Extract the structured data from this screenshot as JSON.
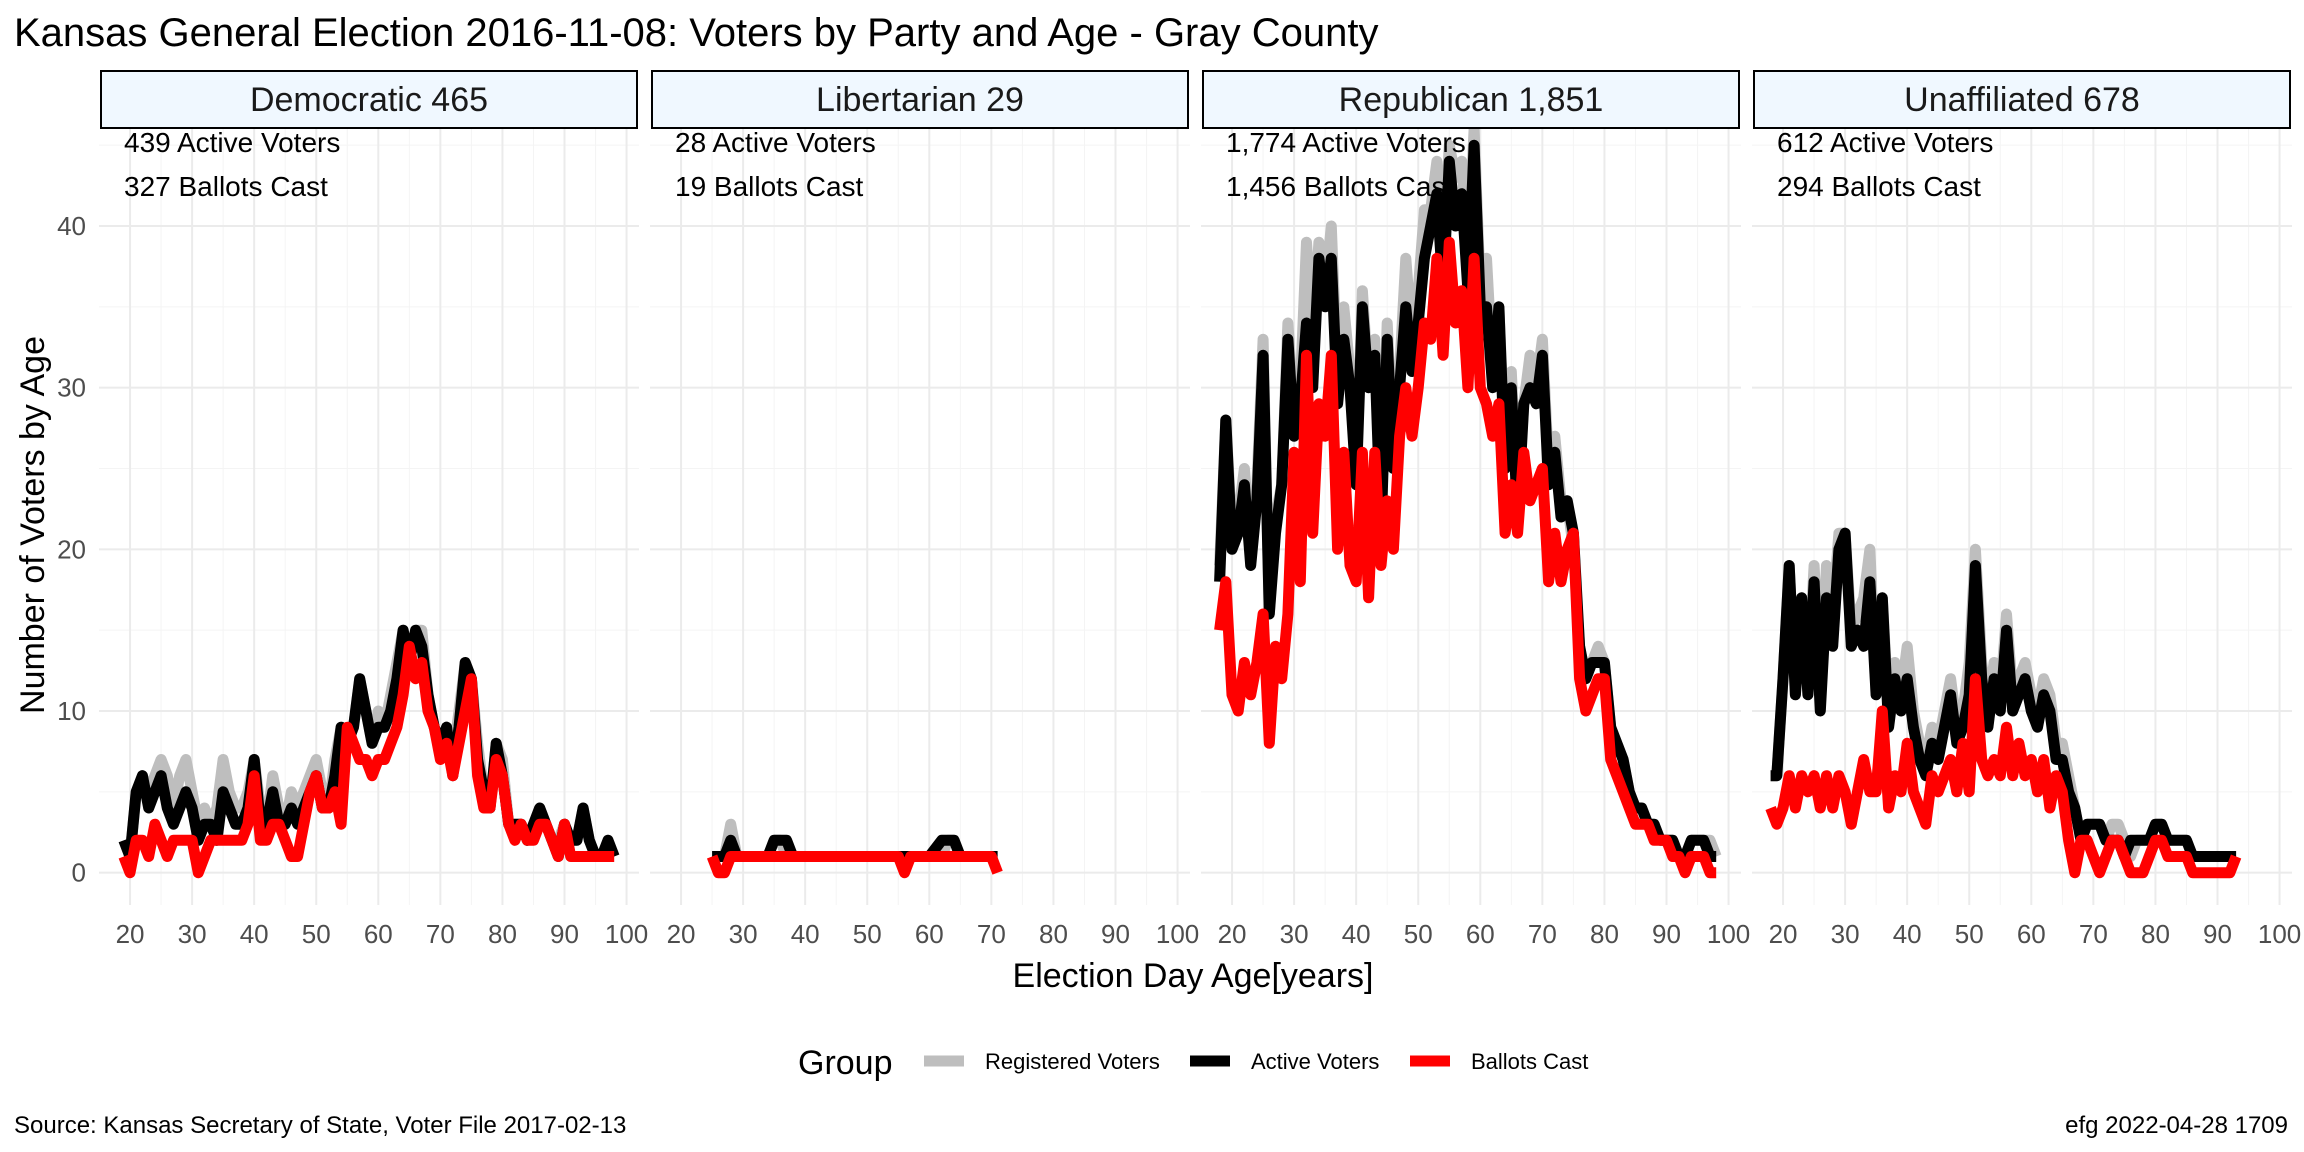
{
  "chart_data": {
    "type": "line",
    "title": "Kansas General Election 2016-11-08:  Voters by Party and Age - Gray County",
    "xlabel": "Election Day Age[years]",
    "ylabel": "Number of Voters by Age",
    "xlim": [
      15,
      102
    ],
    "ylim": [
      -2,
      46
    ],
    "x_ticks": [
      20,
      30,
      40,
      50,
      60,
      70,
      80,
      90,
      100
    ],
    "y_ticks": [
      0,
      10,
      20,
      30,
      40
    ],
    "grid": true,
    "legend": {
      "title": "Group",
      "position": "bottom",
      "entries": [
        {
          "label": "Registered Voters",
          "color": "#bebebe"
        },
        {
          "label": "Active Voters",
          "color": "#000000"
        },
        {
          "label": "Ballots Cast",
          "color": "#ff0000"
        }
      ]
    },
    "series_colors": {
      "registered": "#bebebe",
      "active": "#000000",
      "ballots": "#ff0000"
    },
    "panels": [
      {
        "strip": "Democratic 465",
        "annotation_active": "439 Active Voters",
        "annotation_ballots": "327 Ballots Cast",
        "x": [
          19,
          20,
          21,
          22,
          23,
          24,
          25,
          26,
          27,
          28,
          29,
          30,
          31,
          32,
          33,
          34,
          35,
          36,
          37,
          38,
          39,
          40,
          41,
          42,
          43,
          44,
          45,
          46,
          47,
          48,
          49,
          50,
          51,
          52,
          53,
          54,
          55,
          56,
          57,
          58,
          59,
          60,
          61,
          62,
          63,
          64,
          65,
          66,
          67,
          68,
          69,
          70,
          71,
          72,
          73,
          74,
          75,
          76,
          77,
          78,
          79,
          80,
          81,
          82,
          83,
          84,
          85,
          86,
          87,
          88,
          89,
          90,
          91,
          92,
          93,
          94,
          95,
          96,
          97,
          98
        ],
        "registered": [
          2,
          1,
          5,
          6,
          5,
          6,
          7,
          6,
          4,
          6,
          7,
          5,
          3,
          4,
          3,
          4,
          7,
          5,
          4,
          4,
          5,
          7,
          4,
          3,
          6,
          4,
          3,
          5,
          4,
          5,
          6,
          7,
          5,
          4,
          7,
          9,
          8,
          9,
          12,
          10,
          8,
          10,
          9,
          11,
          13,
          15,
          13,
          15,
          15,
          11,
          9,
          8,
          9,
          7,
          10,
          13,
          12,
          8,
          5,
          4,
          8,
          7,
          3,
          3,
          3,
          2,
          3,
          4,
          3,
          2,
          2,
          3,
          2,
          2,
          4,
          2,
          1,
          1,
          2,
          1
        ],
        "active": [
          2,
          1,
          5,
          6,
          4,
          5,
          6,
          4,
          3,
          4,
          5,
          4,
          2,
          3,
          3,
          2,
          5,
          4,
          3,
          3,
          4,
          7,
          3,
          3,
          5,
          3,
          3,
          4,
          3,
          4,
          5,
          6,
          4,
          4,
          6,
          9,
          8,
          9,
          12,
          10,
          8,
          9,
          9,
          10,
          12,
          15,
          13,
          15,
          14,
          11,
          9,
          8,
          9,
          6,
          9,
          13,
          12,
          7,
          5,
          4,
          8,
          6,
          3,
          3,
          3,
          2,
          3,
          4,
          3,
          2,
          1,
          3,
          2,
          2,
          4,
          2,
          1,
          1,
          2,
          1
        ],
        "ballots": [
          1,
          0,
          2,
          2,
          1,
          3,
          2,
          1,
          2,
          2,
          2,
          2,
          0,
          1,
          2,
          2,
          2,
          2,
          2,
          2,
          3,
          6,
          2,
          2,
          3,
          3,
          2,
          1,
          1,
          3,
          5,
          6,
          4,
          4,
          5,
          3,
          9,
          8,
          7,
          7,
          6,
          7,
          7,
          8,
          9,
          11,
          14,
          12,
          13,
          10,
          9,
          7,
          8,
          6,
          8,
          10,
          12,
          6,
          4,
          4,
          7,
          6,
          3,
          2,
          3,
          2,
          2,
          3,
          3,
          2,
          1,
          3,
          1,
          1,
          1,
          1,
          1,
          1,
          1,
          1
        ]
      },
      {
        "strip": "Libertarian 29",
        "annotation_active": "28 Active Voters",
        "annotation_ballots": "19 Ballots Cast",
        "x": [
          25,
          26,
          27,
          28,
          29,
          30,
          31,
          32,
          33,
          34,
          35,
          36,
          37,
          38,
          39,
          40,
          45,
          50,
          55,
          56,
          57,
          58,
          60,
          62,
          63,
          64,
          65,
          70,
          71
        ],
        "registered": [
          1,
          1,
          1,
          3,
          1,
          1,
          1,
          1,
          1,
          1,
          2,
          2,
          1,
          1,
          1,
          1,
          1,
          1,
          1,
          1,
          1,
          1,
          1,
          1,
          2,
          2,
          1,
          1,
          1
        ],
        "active": [
          1,
          1,
          1,
          2,
          1,
          1,
          1,
          1,
          1,
          1,
          2,
          2,
          2,
          1,
          1,
          1,
          1,
          1,
          1,
          1,
          1,
          1,
          1,
          2,
          2,
          2,
          1,
          1,
          1
        ],
        "ballots": [
          1,
          0,
          0,
          1,
          1,
          1,
          1,
          1,
          1,
          1,
          1,
          1,
          1,
          1,
          1,
          1,
          1,
          1,
          1,
          0,
          1,
          1,
          1,
          1,
          1,
          1,
          1,
          1,
          0
        ]
      },
      {
        "strip": "Republican 1,851",
        "annotation_active": "1,774 Active Voters",
        "annotation_ballots": "1,456 Ballots Cast",
        "x": [
          18,
          19,
          20,
          21,
          22,
          23,
          24,
          25,
          26,
          27,
          28,
          29,
          30,
          31,
          32,
          33,
          34,
          35,
          36,
          37,
          38,
          39,
          40,
          41,
          42,
          43,
          44,
          45,
          46,
          47,
          48,
          49,
          50,
          51,
          52,
          53,
          54,
          55,
          56,
          57,
          58,
          59,
          60,
          61,
          62,
          63,
          64,
          65,
          66,
          67,
          68,
          69,
          70,
          71,
          72,
          73,
          74,
          75,
          76,
          77,
          78,
          79,
          80,
          81,
          82,
          83,
          84,
          85,
          86,
          87,
          88,
          89,
          90,
          91,
          92,
          93,
          94,
          95,
          96,
          97,
          98
        ],
        "registered": [
          19,
          28,
          21,
          22,
          25,
          20,
          24,
          33,
          16,
          22,
          24,
          34,
          28,
          30,
          39,
          33,
          39,
          36,
          40,
          30,
          35,
          31,
          25,
          36,
          30,
          33,
          22,
          34,
          26,
          31,
          38,
          33,
          36,
          41,
          41,
          44,
          38,
          45,
          43,
          44,
          38,
          46,
          36,
          38,
          31,
          35,
          26,
          31,
          23,
          29,
          32,
          30,
          33,
          25,
          27,
          23,
          23,
          20,
          14,
          12,
          13,
          14,
          13,
          9,
          8,
          7,
          5,
          4,
          4,
          3,
          3,
          2,
          2,
          2,
          1,
          1,
          2,
          2,
          2,
          2,
          1
        ],
        "active": [
          18,
          28,
          20,
          21,
          24,
          19,
          23,
          32,
          16,
          21,
          24,
          33,
          27,
          29,
          34,
          30,
          38,
          35,
          38,
          29,
          33,
          30,
          24,
          35,
          30,
          32,
          21,
          33,
          25,
          30,
          35,
          31,
          34,
          38,
          40,
          42,
          36,
          44,
          40,
          42,
          36,
          45,
          35,
          35,
          30,
          35,
          25,
          30,
          22,
          29,
          30,
          29,
          32,
          24,
          26,
          22,
          23,
          21,
          14,
          12,
          13,
          13,
          13,
          9,
          8,
          7,
          5,
          4,
          4,
          3,
          3,
          2,
          2,
          2,
          1,
          1,
          2,
          2,
          2,
          1,
          1
        ],
        "ballots": [
          15,
          18,
          11,
          10,
          13,
          11,
          13,
          16,
          8,
          14,
          12,
          16,
          26,
          18,
          32,
          21,
          29,
          27,
          32,
          20,
          26,
          19,
          18,
          26,
          17,
          26,
          19,
          23,
          20,
          27,
          30,
          27,
          30,
          34,
          33,
          38,
          32,
          39,
          34,
          36,
          30,
          38,
          30,
          29,
          27,
          29,
          21,
          24,
          21,
          26,
          23,
          24,
          25,
          18,
          21,
          18,
          20,
          21,
          12,
          10,
          11,
          12,
          12,
          7,
          6,
          5,
          4,
          3,
          3,
          3,
          2,
          2,
          2,
          1,
          1,
          0,
          1,
          1,
          1,
          0,
          0
        ]
      },
      {
        "strip": "Unaffiliated 678",
        "annotation_active": "612 Active Voters",
        "annotation_ballots": "294 Ballots Cast",
        "x": [
          18,
          19,
          20,
          21,
          22,
          23,
          24,
          25,
          26,
          27,
          28,
          29,
          30,
          31,
          32,
          33,
          34,
          35,
          36,
          37,
          38,
          39,
          40,
          41,
          42,
          43,
          44,
          45,
          46,
          47,
          48,
          49,
          50,
          51,
          52,
          53,
          54,
          55,
          56,
          57,
          58,
          59,
          60,
          61,
          62,
          63,
          64,
          65,
          66,
          67,
          68,
          69,
          70,
          71,
          72,
          73,
          74,
          75,
          76,
          77,
          78,
          79,
          80,
          81,
          82,
          83,
          84,
          85,
          86,
          87,
          88,
          89,
          90,
          91,
          92,
          93
        ],
        "registered": [
          6,
          6,
          12,
          19,
          11,
          17,
          12,
          19,
          11,
          19,
          16,
          21,
          21,
          15,
          16,
          17,
          20,
          11,
          17,
          10,
          13,
          11,
          14,
          10,
          8,
          7,
          9,
          8,
          10,
          12,
          9,
          10,
          13,
          20,
          13,
          10,
          13,
          11,
          16,
          11,
          12,
          13,
          11,
          10,
          12,
          11,
          8,
          8,
          6,
          4,
          2,
          3,
          3,
          3,
          2,
          3,
          3,
          2,
          1,
          2,
          2,
          2,
          3,
          3,
          2,
          2,
          2,
          2,
          1,
          1,
          1,
          1,
          1,
          1,
          1,
          1
        ],
        "active": [
          6,
          6,
          12,
          19,
          11,
          17,
          11,
          18,
          10,
          17,
          14,
          20,
          21,
          14,
          15,
          14,
          18,
          11,
          17,
          9,
          12,
          10,
          12,
          9,
          7,
          6,
          8,
          7,
          9,
          11,
          8,
          9,
          11,
          19,
          12,
          9,
          12,
          10,
          15,
          10,
          11,
          12,
          10,
          9,
          11,
          10,
          7,
          7,
          5,
          4,
          2,
          3,
          3,
          3,
          2,
          2,
          2,
          1,
          2,
          2,
          2,
          2,
          3,
          3,
          2,
          2,
          2,
          2,
          1,
          1,
          1,
          1,
          1,
          1,
          1,
          1
        ],
        "ballots": [
          4,
          3,
          4,
          6,
          4,
          6,
          5,
          6,
          4,
          6,
          4,
          6,
          5,
          3,
          5,
          7,
          5,
          5,
          10,
          4,
          6,
          5,
          8,
          5,
          4,
          3,
          6,
          5,
          6,
          7,
          5,
          8,
          5,
          12,
          7,
          6,
          7,
          6,
          9,
          6,
          8,
          6,
          7,
          5,
          7,
          4,
          6,
          5,
          2,
          0,
          2,
          2,
          1,
          0,
          1,
          2,
          2,
          1,
          0,
          0,
          0,
          1,
          2,
          2,
          1,
          1,
          1,
          1,
          0,
          0,
          0,
          0,
          0,
          0,
          0,
          1
        ]
      }
    ]
  },
  "footer": {
    "source": "Source:  Kansas Secretary of State, Voter File  2017-02-13",
    "credit": "efg 2022-04-28 1709"
  }
}
